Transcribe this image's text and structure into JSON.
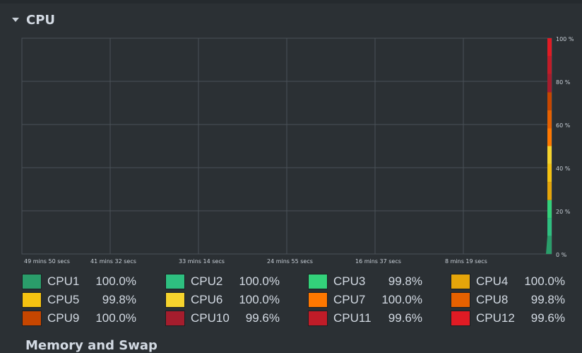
{
  "cpu_section": {
    "title": "CPU",
    "expanded_icon": "triangle-down-icon"
  },
  "graph": {
    "time_labels": [
      "49 mins 50 secs",
      "41 mins 32 secs",
      "33 mins 14 secs",
      "24 mins 55 secs",
      "16 mins 37 secs",
      "8 mins 19 secs"
    ],
    "y_labels": [
      "100 %",
      "80 %",
      "60 %",
      "40 %",
      "20 %",
      "0 %"
    ],
    "grid_color": "#4a5157",
    "background": "#2b3034"
  },
  "cpus": [
    {
      "label": "CPU1",
      "value": "100.0%",
      "color": "#2a9d6a"
    },
    {
      "label": "CPU2",
      "value": "100.0%",
      "color": "#2ebf80"
    },
    {
      "label": "CPU3",
      "value": "99.8%",
      "color": "#33d17a"
    },
    {
      "label": "CPU4",
      "value": "100.0%",
      "color": "#e5a50a"
    },
    {
      "label": "CPU5",
      "value": "99.8%",
      "color": "#f5c211"
    },
    {
      "label": "CPU6",
      "value": "100.0%",
      "color": "#f6d32d"
    },
    {
      "label": "CPU7",
      "value": "100.0%",
      "color": "#ff7800"
    },
    {
      "label": "CPU8",
      "value": "99.8%",
      "color": "#e66100"
    },
    {
      "label": "CPU9",
      "value": "100.0%",
      "color": "#c64600"
    },
    {
      "label": "CPU10",
      "value": "99.6%",
      "color": "#a51d2d"
    },
    {
      "label": "CPU11",
      "value": "99.6%",
      "color": "#c01c28"
    },
    {
      "label": "CPU12",
      "value": "99.6%",
      "color": "#e01b24"
    }
  ],
  "next_section": {
    "title": "Memory and Swap"
  }
}
